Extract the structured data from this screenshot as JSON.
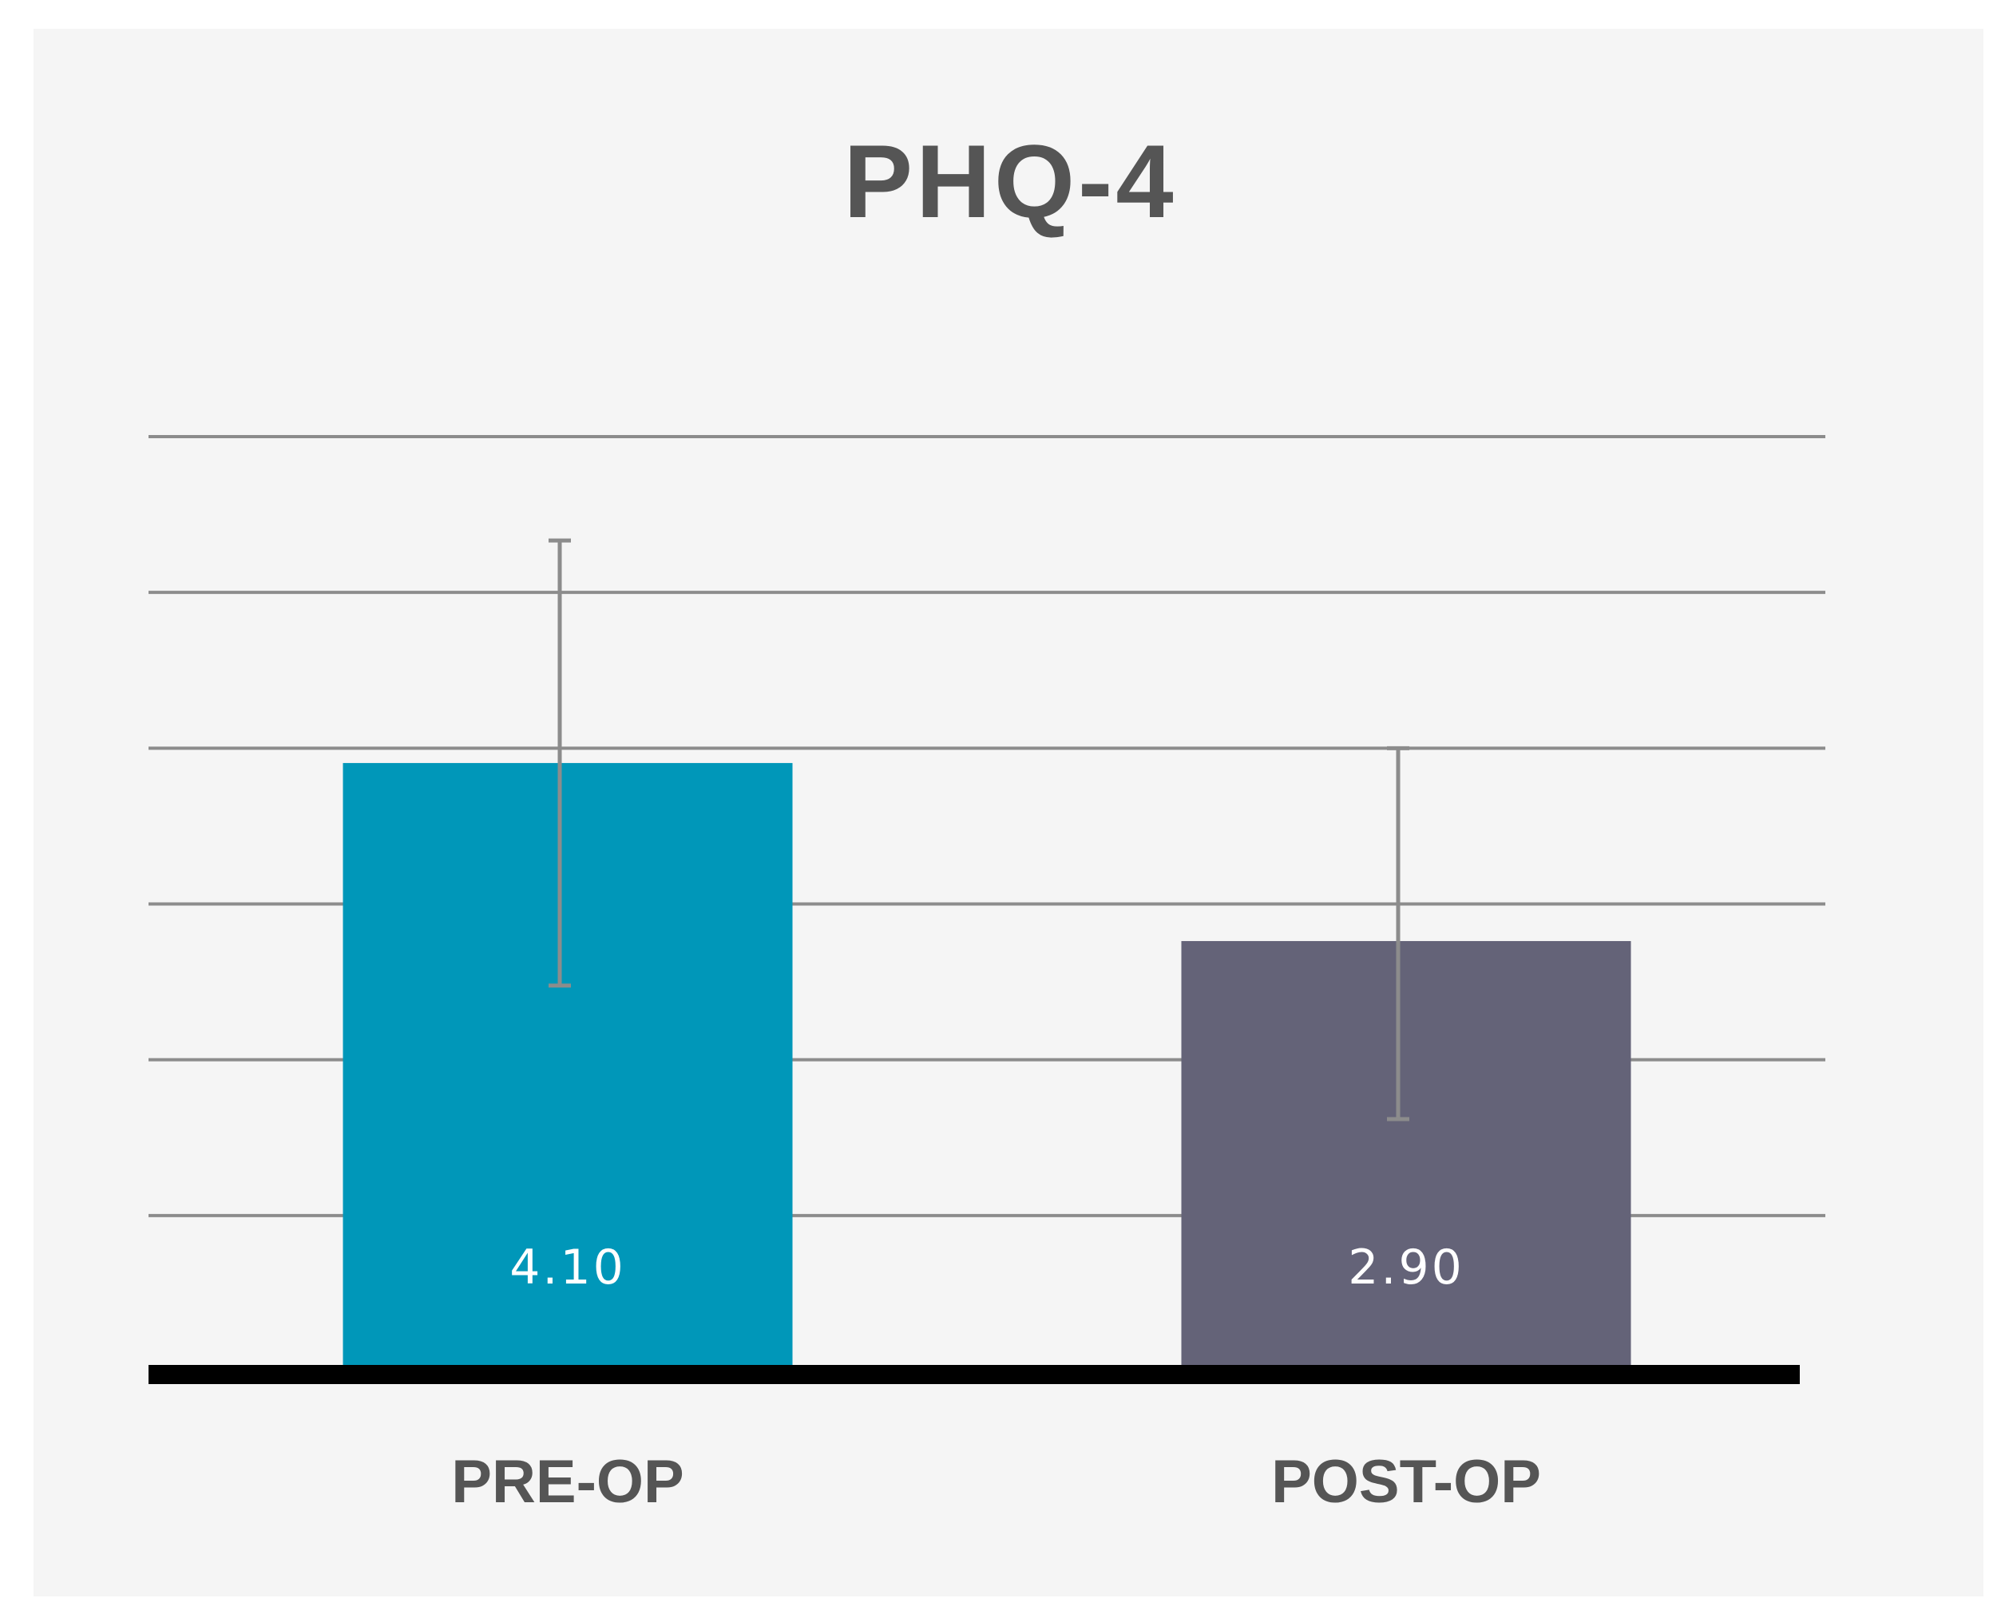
{
  "chart_data": {
    "type": "bar",
    "title": "PHQ-4",
    "xlabel": "",
    "ylabel": "",
    "categories": [
      "PRE-OP",
      "POST-OP"
    ],
    "values": [
      4.1,
      2.9
    ],
    "value_labels": [
      "4.10",
      "2.90"
    ],
    "error_bars": [
      {
        "low": 2.6,
        "high": 5.6
      },
      {
        "low": 1.7,
        "high": 4.2
      }
    ],
    "ylim": [
      0,
      6.3
    ],
    "gridlines": [
      1.05,
      2.1,
      3.15,
      4.2,
      5.25,
      6.3
    ],
    "grid": true,
    "legend": "none",
    "colors": {
      "bars": [
        "#0097b9",
        "#646378"
      ],
      "error_bar": "#8c8c8c",
      "gridline": "#8c8c8c",
      "baseline": "#000000",
      "panel_background": "#f5f5f5"
    }
  }
}
